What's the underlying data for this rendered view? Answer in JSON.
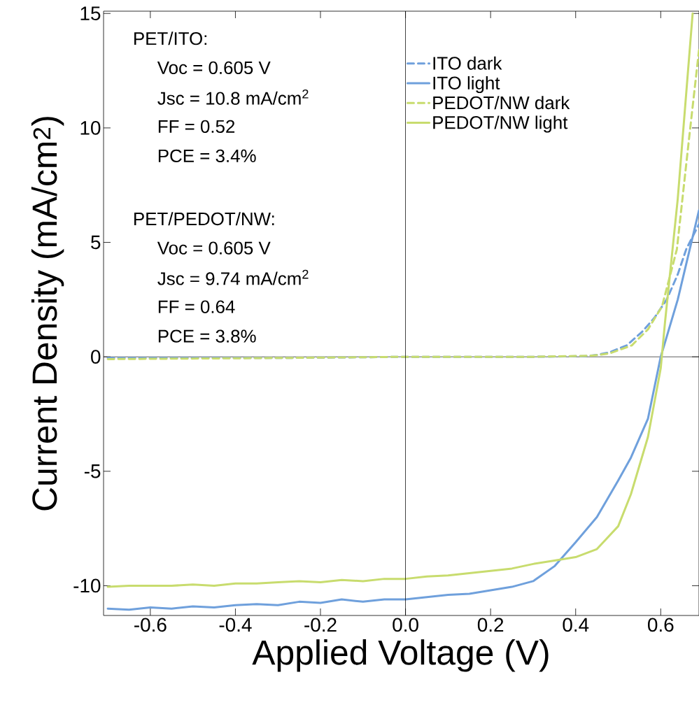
{
  "chart_data": {
    "type": "line",
    "xlabel": "Applied Voltage (V)",
    "ylabel": "Current Density (mA/cm$^{2}$)",
    "annotations": [
      "PET/ITO:",
      "Voc = 0.605 V",
      "Jsc = 10.8 mA/cm$^{2}$",
      "FF = 0.52",
      "PCE = 3.4%",
      "PET/PEDOT/NW:",
      "Voc = 0.605 V",
      "Jsc = 9.74 mA/cm$^{2}$",
      "FF = 0.64",
      "PCE = 3.8%"
    ],
    "xlim": [
      -0.71,
      0.69
    ],
    "ylim": [
      -11.3,
      15.1
    ],
    "xticks": [
      -0.6,
      -0.4,
      -0.2,
      {
        "value": 0,
        "label": "0.0"
      },
      0.2,
      0.4,
      0.6
    ],
    "yticks": [
      -10,
      -5,
      0,
      5,
      10,
      15
    ],
    "grid": false,
    "legend": "top right",
    "marker": "none",
    "ref_lines": [
      {
        "axis": "x",
        "value": 0,
        "color": "#000000"
      },
      {
        "axis": "y",
        "value": 0,
        "color": "#333333"
      }
    ],
    "series": [
      {
        "name": "ITO dark",
        "color": "#6fa0dc",
        "line_style": "dashed",
        "x": [
          -0.7,
          -0.3,
          0,
          0.3,
          0.42,
          0.45,
          0.48,
          0.52,
          0.555,
          0.585,
          0.614,
          0.64,
          0.66,
          0.69
        ],
        "values": [
          -0.05,
          -0.05,
          0,
          0,
          0.03,
          0.08,
          0.2,
          0.5,
          1.07,
          1.7,
          2.5,
          3.6,
          4.7,
          5.8
        ]
      },
      {
        "name": "ITO light",
        "color": "#6fa0dc",
        "line_style": "solid",
        "x": [
          -0.7,
          -0.65,
          -0.6,
          -0.55,
          -0.5,
          -0.45,
          -0.4,
          -0.35,
          -0.3,
          -0.25,
          -0.2,
          -0.15,
          -0.1,
          -0.05,
          0,
          0.05,
          0.1,
          0.15,
          0.2,
          0.25,
          0.3,
          0.35,
          0.4,
          0.45,
          0.5,
          0.53,
          0.57,
          0.6,
          0.64,
          0.69
        ],
        "values": [
          -11.0,
          -11.05,
          -10.95,
          -11.0,
          -10.9,
          -10.95,
          -10.85,
          -10.8,
          -10.85,
          -10.7,
          -10.75,
          -10.6,
          -10.7,
          -10.6,
          -10.6,
          -10.5,
          -10.4,
          -10.35,
          -10.2,
          -10.05,
          -9.8,
          -9.15,
          -8.1,
          -7.0,
          -5.4,
          -4.4,
          -2.7,
          0.0,
          2.5,
          6.4
        ]
      },
      {
        "name": "PEDOT/NW dark",
        "color": "#c8dc6e",
        "line_style": "dashed",
        "x": [
          -0.7,
          -0.3,
          0,
          0.3,
          0.44,
          0.48,
          0.532,
          0.57,
          0.603,
          0.638,
          0.667,
          0.69
        ],
        "values": [
          -0.1,
          -0.05,
          0,
          0,
          0.05,
          0.15,
          0.5,
          1.2,
          2.2,
          4.7,
          9.6,
          13.4
        ]
      },
      {
        "name": "PEDOT/NW light",
        "color": "#c8dc6e",
        "line_style": "solid",
        "x": [
          -0.7,
          -0.65,
          -0.6,
          -0.55,
          -0.5,
          -0.45,
          -0.4,
          -0.35,
          -0.3,
          -0.25,
          -0.2,
          -0.15,
          -0.1,
          -0.05,
          0,
          0.05,
          0.1,
          0.15,
          0.2,
          0.25,
          0.3,
          0.35,
          0.4,
          0.45,
          0.5,
          0.53,
          0.57,
          0.6,
          0.61,
          0.64,
          0.675
        ],
        "values": [
          -10.05,
          -10.0,
          -10.0,
          -10.0,
          -9.95,
          -10.0,
          -9.9,
          -9.9,
          -9.85,
          -9.8,
          -9.85,
          -9.75,
          -9.8,
          -9.7,
          -9.7,
          -9.6,
          -9.55,
          -9.45,
          -9.35,
          -9.25,
          -9.05,
          -8.9,
          -8.75,
          -8.4,
          -7.4,
          -6.0,
          -3.5,
          -0.5,
          1.5,
          6.9,
          15.0
        ]
      }
    ]
  }
}
